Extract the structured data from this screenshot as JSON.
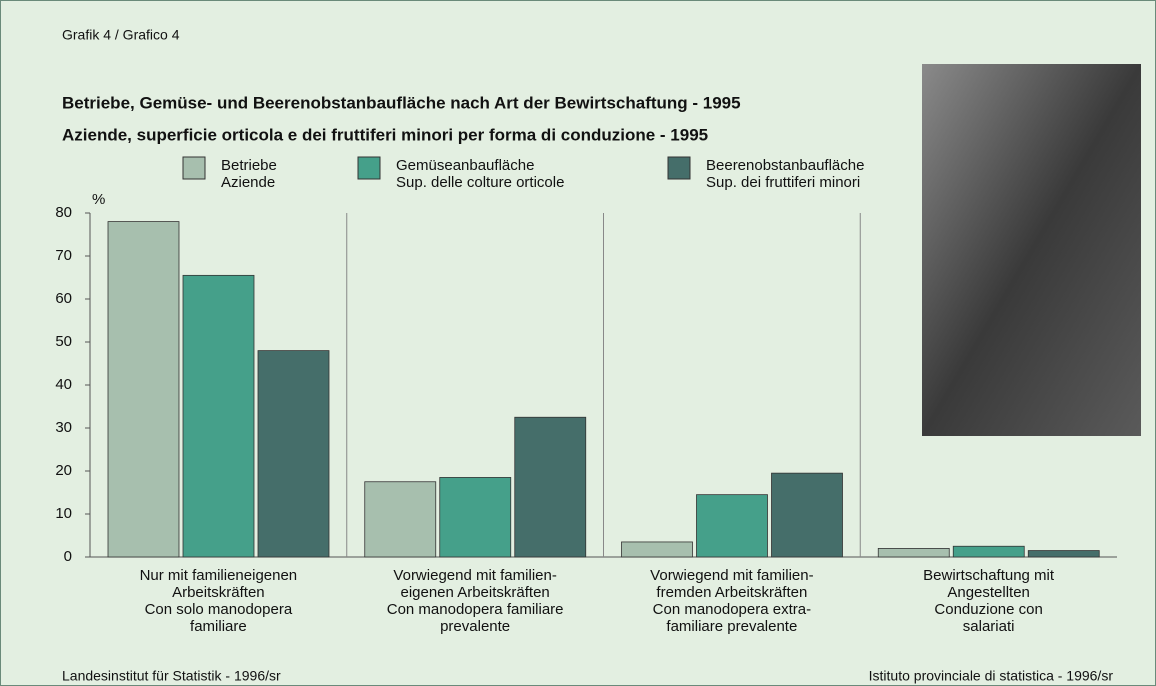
{
  "chart_data": {
    "type": "bar",
    "header": "Grafik 4 / Grafico 4",
    "title": "Betriebe, Gemüse- und Beerenobstanbaufläche nach Art der Bewirtschaftung - 1995",
    "subtitle": "Aziende, superficie orticola e dei fruttiferi minori per forma di conduzione - 1995",
    "y_label": "%",
    "categories": [
      [
        "Nur mit familieneigenen",
        "Arbeitskräften",
        "Con solo manodopera",
        "familiare"
      ],
      [
        "Vorwiegend mit familien-",
        "eigenen Arbeitskräften",
        "Con manodopera familiare",
        "prevalente"
      ],
      [
        "Vorwiegend mit familien-",
        "fremden Arbeitskräften",
        "Con manodopera extra-",
        "familiare prevalente"
      ],
      [
        "Bewirtschaftung mit",
        "Angestellten",
        "Conduzione con",
        "salariati"
      ]
    ],
    "series": [
      {
        "name": [
          "Betriebe",
          "Aziende"
        ],
        "color": "#a7bfae",
        "values": [
          78,
          17.5,
          3.5,
          2
        ]
      },
      {
        "name": [
          "Gemüseanbaufläche",
          "Sup. delle colture orticole"
        ],
        "color": "#45a08a",
        "values": [
          65.5,
          18.5,
          14.5,
          2.5
        ]
      },
      {
        "name": [
          "Beerenobstanbaufläche",
          "Sup. dei fruttiferi minori"
        ],
        "color": "#456e6a",
        "values": [
          48,
          32.5,
          19.5,
          1.5
        ]
      }
    ],
    "ylim": [
      0,
      80
    ],
    "yticks": [
      0,
      10,
      20,
      30,
      40,
      50,
      60,
      70,
      80
    ],
    "footer_left": "Landesinstitut für Statistik - 1996/sr",
    "footer_right": "Istituto provinciale di statistica - 1996/sr"
  }
}
